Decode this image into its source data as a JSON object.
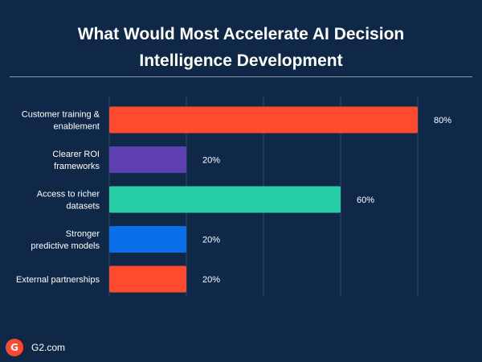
{
  "title": {
    "line1": "What Would Most Accelerate AI Decision",
    "line2": "Intelligence Development"
  },
  "footer": {
    "logo_text": "G",
    "brand": "G2.com"
  },
  "colors": {
    "background": "#0f2847",
    "grid": "#2c4664"
  },
  "chart_data": {
    "type": "bar",
    "orientation": "horizontal",
    "categories": [
      [
        "Customer training &",
        "enablement"
      ],
      [
        "Clearer ROI",
        "frameworks"
      ],
      [
        "Access to richer",
        "datasets"
      ],
      [
        "Stronger",
        "predictive models"
      ],
      [
        "External partnerships"
      ]
    ],
    "values": [
      80,
      20,
      60,
      20,
      20
    ],
    "value_labels": [
      "80%",
      "20%",
      "60%",
      "20%",
      "20%"
    ],
    "bar_colors": [
      "#ff4a2f",
      "#5e3fb0",
      "#27cfa6",
      "#0a6fe8",
      "#ff4a2f"
    ],
    "xlim": [
      0,
      80
    ],
    "grid": true
  }
}
